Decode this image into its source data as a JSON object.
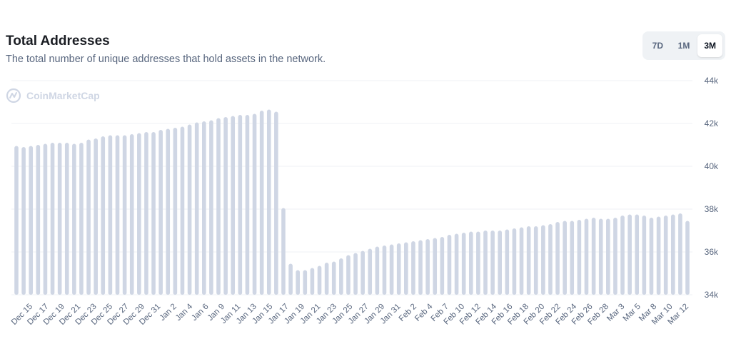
{
  "header": {
    "title": "Total Addresses",
    "subtitle": "The total number of unique addresses that hold assets in the network."
  },
  "range_selector": {
    "options": [
      "7D",
      "1M",
      "3M"
    ],
    "selected": "3M"
  },
  "watermark": {
    "text": "CoinMarketCap",
    "icon": "coinmarketcap-logo-icon"
  },
  "colors": {
    "bar": "#cfd6e4",
    "grid": "#eff2f5",
    "text": "#58667e",
    "title": "#1a1d23"
  },
  "chart_data": {
    "type": "bar",
    "title": "Total Addresses",
    "subtitle": "The total number of unique addresses that hold assets in the network.",
    "y_axis_position": "right",
    "ylim": [
      34000,
      44000
    ],
    "yticks": [
      44000,
      42000,
      40000,
      38000,
      36000,
      34000
    ],
    "ytick_labels": [
      "44k",
      "42k",
      "40k",
      "38k",
      "36k",
      "34k"
    ],
    "xtick_labels": [
      "Dec 15",
      "Dec 17",
      "Dec 19",
      "Dec 21",
      "Dec 23",
      "Dec 25",
      "Dec 27",
      "Dec 29",
      "Dec 31",
      "Jan 2",
      "Jan 4",
      "Jan 6",
      "Jan 9",
      "Jan 11",
      "Jan 13",
      "Jan 15",
      "Jan 17",
      "Jan 19",
      "Jan 21",
      "Jan 23",
      "Jan 25",
      "Jan 27",
      "Jan 29",
      "Jan 31",
      "Feb 2",
      "Feb 4",
      "Feb 7",
      "Feb 10",
      "Feb 12",
      "Feb 14",
      "Feb 16",
      "Feb 18",
      "Feb 20",
      "Feb 22",
      "Feb 24",
      "Feb 26",
      "Feb 28",
      "Mar 3",
      "Mar 5",
      "Mar 8",
      "Mar 10",
      "Mar 12"
    ],
    "grid": true,
    "series": [
      {
        "values": [
          40950,
          40900,
          40950,
          41000,
          41050,
          41100,
          41100,
          41100,
          41050,
          41100,
          41250,
          41300,
          41400,
          41450,
          41450,
          41450,
          41500,
          41550,
          41600,
          41600,
          41700,
          41750,
          41800,
          41850,
          41950,
          42050,
          42100,
          42150,
          42250,
          42300,
          42350,
          42400,
          42400,
          42450,
          42600,
          42650,
          42550,
          38050,
          35450,
          35150,
          35150,
          35250,
          35350,
          35500,
          35550,
          35700,
          35850,
          35950,
          36050,
          36150,
          36250,
          36300,
          36350,
          36400,
          36450,
          36500,
          36550,
          36600,
          36650,
          36700,
          36800,
          36850,
          36900,
          36950,
          36950,
          37000,
          37000,
          37000,
          37050,
          37100,
          37150,
          37200,
          37200,
          37250,
          37300,
          37400,
          37450,
          37450,
          37500,
          37550,
          37600,
          37550,
          37550,
          37600,
          37700,
          37750,
          37750,
          37700,
          37600,
          37650,
          37700,
          37750,
          37800,
          37450
        ]
      }
    ]
  }
}
